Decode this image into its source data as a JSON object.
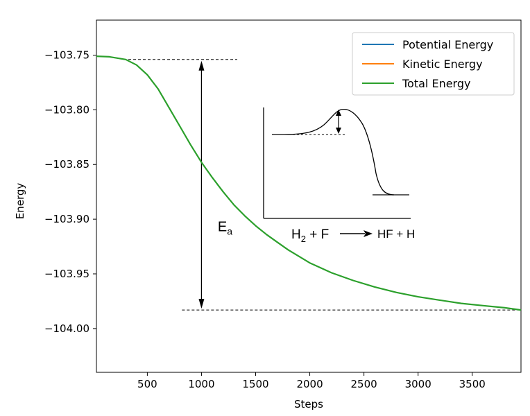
{
  "chart_data": {
    "type": "line",
    "title": "",
    "xlabel": "Steps",
    "ylabel": "Energy",
    "xlim": [
      30,
      3950
    ],
    "ylim": [
      -104.04,
      -103.718
    ],
    "xticks": [
      500,
      1000,
      1500,
      2000,
      2500,
      3000,
      3500
    ],
    "yticks": [
      -103.75,
      -103.8,
      -103.85,
      -103.9,
      -103.95,
      -104.0
    ],
    "ytick_labels": [
      "−103.75",
      "−103.80",
      "−103.85",
      "−103.90",
      "−103.95",
      "−104.00"
    ],
    "grid": false,
    "legend": {
      "placement": "top-right",
      "entries": [
        "Potential Energy",
        "Kinetic Energy",
        "Total Energy"
      ]
    },
    "series": [
      {
        "name": "Total Energy",
        "color": "#2ca02c",
        "x": [
          30,
          150,
          300,
          400,
          500,
          600,
          700,
          800,
          900,
          1000,
          1100,
          1200,
          1300,
          1400,
          1500,
          1600,
          1700,
          1800,
          2000,
          2200,
          2400,
          2600,
          2800,
          3000,
          3200,
          3400,
          3600,
          3800,
          3950
        ],
        "y": [
          -103.751,
          -103.7515,
          -103.754,
          -103.759,
          -103.768,
          -103.781,
          -103.798,
          -103.815,
          -103.832,
          -103.848,
          -103.862,
          -103.875,
          -103.887,
          -103.897,
          -103.906,
          -103.914,
          -103.921,
          -103.928,
          -103.94,
          -103.949,
          -103.956,
          -103.962,
          -103.967,
          -103.971,
          -103.974,
          -103.977,
          -103.979,
          -103.981,
          -103.983
        ]
      }
    ],
    "legend_colors": [
      "#1f77b4",
      "#ff7f0e",
      "#2ca02c"
    ],
    "annotations": {
      "top_line": {
        "x1": 280,
        "x2": 1330,
        "y": -103.754
      },
      "bottom_line": {
        "x1": 820,
        "x2": 3950,
        "y": -103.983
      },
      "arrow": {
        "x": 1000,
        "y1": -103.754,
        "y2": -103.983
      },
      "ea_label": {
        "main": "E",
        "sub": "a",
        "x": 1150,
        "y": -103.911
      }
    },
    "inset": {
      "caption_parts": [
        "H",
        "2",
        " + F",
        "HF + H"
      ]
    }
  }
}
